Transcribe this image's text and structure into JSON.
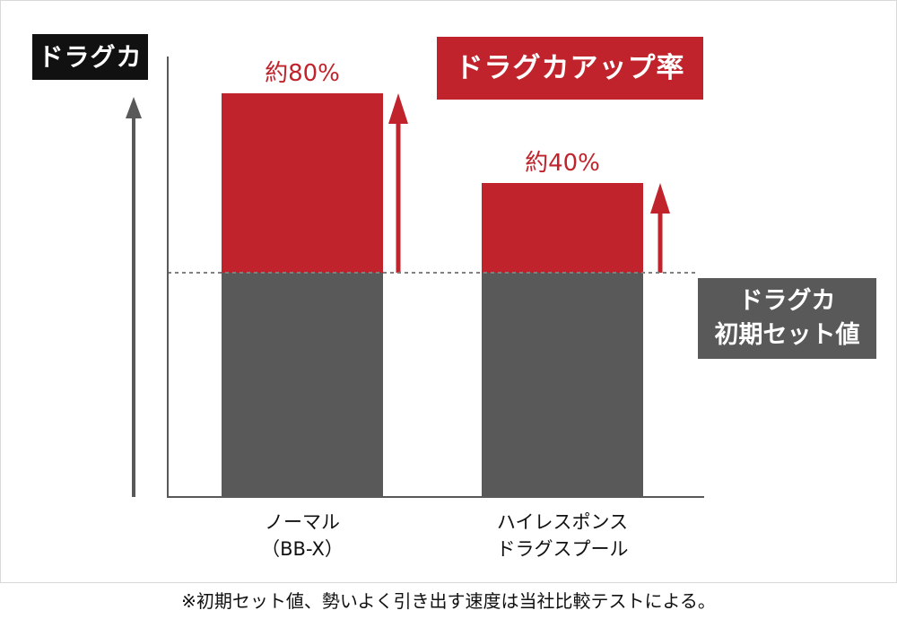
{
  "y_axis_label": "ドラグカ",
  "title": "ドラグカアップ率",
  "reference_label": [
    "ドラグカ",
    "初期セット値"
  ],
  "footnote": "※初期セット値、勢いよく引き出す速度は当社比較テストによる。",
  "colors": {
    "increase": "#c0232b",
    "initial": "#595959",
    "axis": "#595959",
    "text_red": "#c0232b",
    "text_dark": "#111111"
  },
  "chart_data": {
    "type": "bar",
    "stacked": true,
    "categories": [
      [
        "ノーマル",
        "（BB-X）"
      ],
      [
        "ハイレスポンス",
        "ドラグスプール"
      ]
    ],
    "series": [
      {
        "key": "initial",
        "values": [
          1.0,
          1.0
        ]
      },
      {
        "key": "increase",
        "values": [
          0.8,
          0.4
        ]
      }
    ],
    "data_labels": [
      "約80%",
      "約40%"
    ],
    "ylim": [
      0,
      1.8
    ],
    "reference_line": 1.0,
    "grid": false
  }
}
